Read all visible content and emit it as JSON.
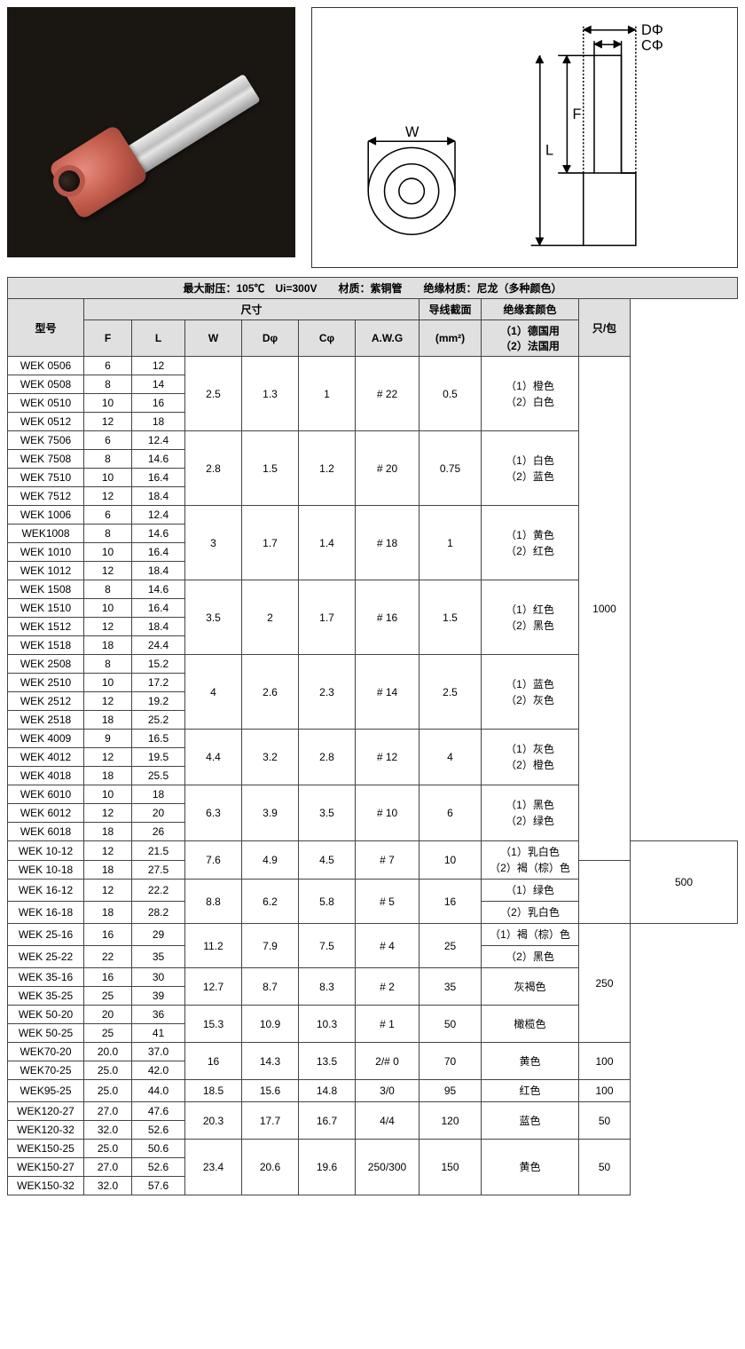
{
  "titleBar": "最大耐压：105℃　Ui=300V　　材质：紫铜管　　绝缘材质：尼龙（多种颜色）",
  "headers": {
    "model": "型号",
    "size": "尺寸",
    "F": "F",
    "L": "L",
    "W": "W",
    "Dphi": "Dφ",
    "Cphi": "Cφ",
    "AWG": "A.W.G",
    "crossSection": "导线截面",
    "mm2": "(mm²)",
    "color": "绝缘套颜色",
    "colorSub1": "（1）德国用",
    "colorSub2": "（2）法国用",
    "pack": "只/包"
  },
  "diagramLabels": {
    "W": "W",
    "L": "L",
    "F": "F",
    "D": "DΦ",
    "C": "CΦ"
  },
  "groups": [
    {
      "rows": [
        [
          "WEK 0506",
          "6",
          "12"
        ],
        [
          "WEK 0508",
          "8",
          "14"
        ],
        [
          "WEK 0510",
          "10",
          "16"
        ],
        [
          "WEK 0512",
          "12",
          "18"
        ]
      ],
      "W": "2.5",
      "D": "1.3",
      "C": "1",
      "AWG": "# 22",
      "cs": "0.5",
      "color": "（1）橙色<br>（2）白色",
      "pack": "1000",
      "packSpan": 27
    },
    {
      "rows": [
        [
          "WEK 7506",
          "6",
          "12.4"
        ],
        [
          "WEK 7508",
          "8",
          "14.6"
        ],
        [
          "WEK 7510",
          "10",
          "16.4"
        ],
        [
          "WEK 7512",
          "12",
          "18.4"
        ]
      ],
      "W": "2.8",
      "D": "1.5",
      "C": "1.2",
      "AWG": "# 20",
      "cs": "0.75",
      "color": "（1）白色<br>（2）蓝色"
    },
    {
      "rows": [
        [
          "WEK 1006",
          "6",
          "12.4"
        ],
        [
          "WEK1008",
          "8",
          "14.6"
        ],
        [
          "WEK 1010",
          "10",
          "16.4"
        ],
        [
          "WEK 1012",
          "12",
          "18.4"
        ]
      ],
      "W": "3",
      "D": "1.7",
      "C": "1.4",
      "AWG": "# 18",
      "cs": "1",
      "color": "（1）黄色<br>（2）红色"
    },
    {
      "rows": [
        [
          "WEK 1508",
          "8",
          "14.6"
        ],
        [
          "WEK 1510",
          "10",
          "16.4"
        ],
        [
          "WEK 1512",
          "12",
          "18.4"
        ],
        [
          "WEK 1518",
          "18",
          "24.4"
        ]
      ],
      "W": "3.5",
      "D": "2",
      "C": "1.7",
      "AWG": "# 16",
      "cs": "1.5",
      "color": "（1）红色<br>（2）黑色"
    },
    {
      "rows": [
        [
          "WEK 2508",
          "8",
          "15.2"
        ],
        [
          "WEK 2510",
          "10",
          "17.2"
        ],
        [
          "WEK 2512",
          "12",
          "19.2"
        ],
        [
          "WEK 2518",
          "18",
          "25.2"
        ]
      ],
      "W": "4",
      "D": "2.6",
      "C": "2.3",
      "AWG": "# 14",
      "cs": "2.5",
      "color": "（1）蓝色<br>（2）灰色"
    },
    {
      "rows": [
        [
          "WEK 4009",
          "9",
          "16.5"
        ],
        [
          "WEK 4012",
          "12",
          "19.5"
        ],
        [
          "WEK 4018",
          "18",
          "25.5"
        ]
      ],
      "W": "4.4",
      "D": "3.2",
      "C": "2.8",
      "AWG": "# 12",
      "cs": "4",
      "color": "（1）灰色<br>（2）橙色"
    },
    {
      "rows": [
        [
          "WEK 6010",
          "10",
          "18"
        ],
        [
          "WEK 6012",
          "12",
          "20"
        ],
        [
          "WEK 6018",
          "18",
          "26"
        ]
      ],
      "W": "6.3",
      "D": "3.9",
      "C": "3.5",
      "AWG": "# 10",
      "cs": "6",
      "color": "（1）黑色<br>（2）绿色"
    },
    {
      "rows": [
        [
          "WEK 10-12",
          "12",
          "21.5"
        ],
        [
          "WEK 10-18",
          "18",
          "27.5"
        ]
      ],
      "W": "7.6",
      "D": "4.9",
      "C": "4.5",
      "AWG": "# 7",
      "cs": "10",
      "color": "（1）乳白色<br>（2）褐（棕）色",
      "pack": "500",
      "packSpan": 4
    },
    {
      "rows": [
        [
          "WEK 16-12",
          "12",
          "22.2"
        ],
        [
          "WEK 16-18",
          "18",
          "28.2"
        ]
      ],
      "W": "8.8",
      "D": "6.2",
      "C": "5.8",
      "AWG": "# 5",
      "cs": "16",
      "perRowColor": [
        "（1）绿色",
        "（2）乳白色"
      ]
    },
    {
      "rows": [
        [
          "WEK 25-16",
          "16",
          "29"
        ],
        [
          "WEK 25-22",
          "22",
          "35"
        ]
      ],
      "W": "11.2",
      "D": "7.9",
      "C": "7.5",
      "AWG": "# 4",
      "cs": "25",
      "perRowColor": [
        "（1）褐（棕）色",
        "（2）黑色"
      ],
      "pack": "250",
      "packSpan": 6
    },
    {
      "rows": [
        [
          "WEK 35-16",
          "16",
          "30"
        ],
        [
          "WEK 35-25",
          "25",
          "39"
        ]
      ],
      "W": "12.7",
      "D": "8.7",
      "C": "8.3",
      "AWG": "# 2",
      "cs": "35",
      "color": "灰褐色"
    },
    {
      "rows": [
        [
          "WEK 50-20",
          "20",
          "36"
        ],
        [
          "WEK 50-25",
          "25",
          "41"
        ]
      ],
      "W": "15.3",
      "D": "10.9",
      "C": "10.3",
      "AWG": "# 1",
      "cs": "50",
      "color": "橄榄色"
    },
    {
      "rows": [
        [
          "WEK70-20",
          "20.0",
          "37.0"
        ],
        [
          "WEK70-25",
          "25.0",
          "42.0"
        ]
      ],
      "W": "16",
      "D": "14.3",
      "C": "13.5",
      "AWG": "2/# 0",
      "cs": "70",
      "color": "黄色",
      "pack": "100",
      "packSpan": 2
    },
    {
      "rows": [
        [
          "WEK95-25",
          "25.0",
          "44.0"
        ]
      ],
      "W": "18.5",
      "D": "15.6",
      "C": "14.8",
      "AWG": "3/0",
      "cs": "95",
      "color": "红色",
      "pack": "100",
      "packSpan": 1
    },
    {
      "rows": [
        [
          "WEK120-27",
          "27.0",
          "47.6"
        ],
        [
          "WEK120-32",
          "32.0",
          "52.6"
        ]
      ],
      "W": "20.3",
      "D": "17.7",
      "C": "16.7",
      "AWG": "4/4",
      "cs": "120",
      "color": "蓝色",
      "pack": "50",
      "packSpan": 2
    },
    {
      "rows": [
        [
          "WEK150-25",
          "25.0",
          "50.6"
        ],
        [
          "WEK150-27",
          "27.0",
          "52.6"
        ],
        [
          "WEK150-32",
          "32.0",
          "57.6"
        ]
      ],
      "W": "23.4",
      "D": "20.6",
      "C": "19.6",
      "AWG": "250/300",
      "cs": "150",
      "color": "黄色",
      "pack": "50",
      "packSpan": 3
    }
  ]
}
